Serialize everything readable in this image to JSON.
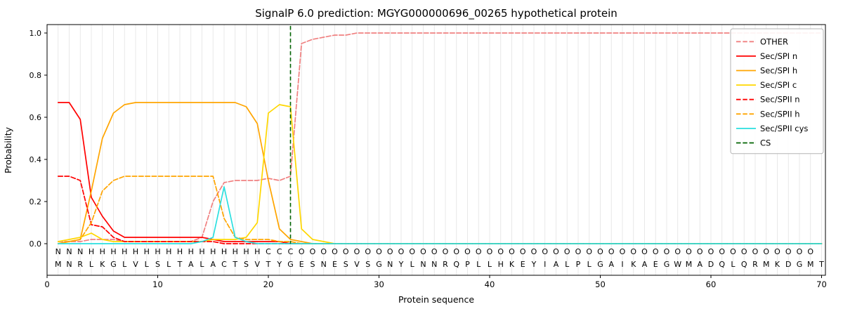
{
  "chart_data": {
    "type": "line",
    "title": "SignalP 6.0 prediction: MGYG000000696_00265 hypothetical protein",
    "xlabel": "Protein sequence",
    "ylabel": "Probability",
    "xlim": [
      0,
      70.35
    ],
    "ylim": [
      0.0,
      1.0
    ],
    "x_ticks": [
      0,
      10,
      20,
      30,
      40,
      50,
      60,
      70
    ],
    "y_ticks": [
      0.0,
      0.2,
      0.4,
      0.6,
      0.8,
      1.0
    ],
    "grid": "vertical-per-residue",
    "legend_position": "upper right",
    "cs_label": "CS",
    "cs_position": 22,
    "sequence": "MNRLKGLVLSLTALACTSVTYGESNESVSGNYLNNRQPLLHKEYIALPLGAIKAEGWMADQLQRMKDGMT",
    "annotation": "NNNHHHHHHHHHHHHHHHHCCCOOOOOOOOOOOOOOOOOOOOOOOOOOOOOOOOOOOOOOOOOOOOOOO",
    "annotation_colors": {
      "N": "#ee2222",
      "H": "#ffa500",
      "C": "#ffd700",
      "O": "#a6a6a6"
    },
    "colors": {
      "grid": "#e3e3e3",
      "frame": "#000000",
      "cs": "#006400",
      "sequence_letters": "#1a1a1a",
      "legend_border": "#b3b3b3"
    },
    "series": [
      {
        "name": "OTHER",
        "color": "#f08080",
        "dash": true,
        "values": [
          0.01,
          0.01,
          0.01,
          0.02,
          0.02,
          0.02,
          0.01,
          0.01,
          0.01,
          0.01,
          0.01,
          0.01,
          0.01,
          0.03,
          0.2,
          0.29,
          0.3,
          0.3,
          0.3,
          0.31,
          0.3,
          0.32,
          0.95,
          0.97,
          0.98,
          0.99,
          0.99,
          1.0,
          1.0,
          1.0,
          1.0,
          1.0,
          1.0,
          1.0,
          1.0,
          1.0,
          1.0,
          1.0,
          1.0,
          1.0,
          1.0,
          1.0,
          1.0,
          1.0,
          1.0,
          1.0,
          1.0,
          1.0,
          1.0,
          1.0,
          1.0,
          1.0,
          1.0,
          1.0,
          1.0,
          1.0,
          1.0,
          1.0,
          1.0,
          1.0,
          1.0,
          1.0,
          1.0,
          1.0,
          1.0,
          1.0,
          1.0,
          1.0,
          1.0,
          1.0
        ]
      },
      {
        "name": "Sec/SPI n",
        "color": "#ff0000",
        "dash": false,
        "values": [
          0.67,
          0.67,
          0.59,
          0.22,
          0.13,
          0.06,
          0.03,
          0.03,
          0.03,
          0.03,
          0.03,
          0.03,
          0.03,
          0.03,
          0.02,
          0.01,
          0.01,
          0.01,
          0.01,
          0.01,
          0.01,
          0.0,
          0.0,
          0.0,
          0.0,
          0.0,
          0.0,
          0.0,
          0.0,
          0.0,
          0.0,
          0.0,
          0.0,
          0.0,
          0.0,
          0.0,
          0.0,
          0.0,
          0.0,
          0.0,
          0.0,
          0.0,
          0.0,
          0.0,
          0.0,
          0.0,
          0.0,
          0.0,
          0.0,
          0.0,
          0.0,
          0.0,
          0.0,
          0.0,
          0.0,
          0.0,
          0.0,
          0.0,
          0.0,
          0.0,
          0.0,
          0.0,
          0.0,
          0.0,
          0.0,
          0.0,
          0.0,
          0.0,
          0.0,
          0.0
        ]
      },
      {
        "name": "Sec/SPI h",
        "color": "#ffa500",
        "dash": false,
        "values": [
          0.0,
          0.01,
          0.02,
          0.25,
          0.5,
          0.62,
          0.66,
          0.67,
          0.67,
          0.67,
          0.67,
          0.67,
          0.67,
          0.67,
          0.67,
          0.67,
          0.67,
          0.65,
          0.57,
          0.3,
          0.07,
          0.02,
          0.01,
          0.0,
          0.0,
          0.0,
          0.0,
          0.0,
          0.0,
          0.0,
          0.0,
          0.0,
          0.0,
          0.0,
          0.0,
          0.0,
          0.0,
          0.0,
          0.0,
          0.0,
          0.0,
          0.0,
          0.0,
          0.0,
          0.0,
          0.0,
          0.0,
          0.0,
          0.0,
          0.0,
          0.0,
          0.0,
          0.0,
          0.0,
          0.0,
          0.0,
          0.0,
          0.0,
          0.0,
          0.0,
          0.0,
          0.0,
          0.0,
          0.0,
          0.0,
          0.0,
          0.0,
          0.0,
          0.0,
          0.0
        ]
      },
      {
        "name": "Sec/SPI c",
        "color": "#ffd700",
        "dash": false,
        "values": [
          0.01,
          0.02,
          0.03,
          0.05,
          0.02,
          0.01,
          0.01,
          0.01,
          0.01,
          0.01,
          0.01,
          0.01,
          0.01,
          0.01,
          0.02,
          0.02,
          0.02,
          0.03,
          0.1,
          0.62,
          0.66,
          0.65,
          0.07,
          0.02,
          0.01,
          0.0,
          0.0,
          0.0,
          0.0,
          0.0,
          0.0,
          0.0,
          0.0,
          0.0,
          0.0,
          0.0,
          0.0,
          0.0,
          0.0,
          0.0,
          0.0,
          0.0,
          0.0,
          0.0,
          0.0,
          0.0,
          0.0,
          0.0,
          0.0,
          0.0,
          0.0,
          0.0,
          0.0,
          0.0,
          0.0,
          0.0,
          0.0,
          0.0,
          0.0,
          0.0,
          0.0,
          0.0,
          0.0,
          0.0,
          0.0,
          0.0,
          0.0,
          0.0,
          0.0,
          0.0
        ]
      },
      {
        "name": "Sec/SPII n",
        "color": "#ff0000",
        "dash": true,
        "values": [
          0.32,
          0.32,
          0.3,
          0.09,
          0.08,
          0.03,
          0.01,
          0.01,
          0.01,
          0.01,
          0.01,
          0.01,
          0.01,
          0.01,
          0.01,
          0.0,
          0.0,
          0.0,
          0.0,
          0.0,
          0.0,
          0.0,
          0.0,
          0.0,
          0.0,
          0.0,
          0.0,
          0.0,
          0.0,
          0.0,
          0.0,
          0.0,
          0.0,
          0.0,
          0.0,
          0.0,
          0.0,
          0.0,
          0.0,
          0.0,
          0.0,
          0.0,
          0.0,
          0.0,
          0.0,
          0.0,
          0.0,
          0.0,
          0.0,
          0.0,
          0.0,
          0.0,
          0.0,
          0.0,
          0.0,
          0.0,
          0.0,
          0.0,
          0.0,
          0.0,
          0.0,
          0.0,
          0.0,
          0.0,
          0.0,
          0.0,
          0.0,
          0.0,
          0.0,
          0.0
        ]
      },
      {
        "name": "Sec/SPII h",
        "color": "#ffa500",
        "dash": true,
        "values": [
          0.0,
          0.01,
          0.02,
          0.1,
          0.25,
          0.3,
          0.32,
          0.32,
          0.32,
          0.32,
          0.32,
          0.32,
          0.32,
          0.32,
          0.32,
          0.12,
          0.03,
          0.02,
          0.02,
          0.02,
          0.01,
          0.01,
          0.0,
          0.0,
          0.0,
          0.0,
          0.0,
          0.0,
          0.0,
          0.0,
          0.0,
          0.0,
          0.0,
          0.0,
          0.0,
          0.0,
          0.0,
          0.0,
          0.0,
          0.0,
          0.0,
          0.0,
          0.0,
          0.0,
          0.0,
          0.0,
          0.0,
          0.0,
          0.0,
          0.0,
          0.0,
          0.0,
          0.0,
          0.0,
          0.0,
          0.0,
          0.0,
          0.0,
          0.0,
          0.0,
          0.0,
          0.0,
          0.0,
          0.0,
          0.0,
          0.0,
          0.0,
          0.0,
          0.0,
          0.0
        ]
      },
      {
        "name": "Sec/SPII cys",
        "color": "#2adfdf",
        "dash": false,
        "values": [
          0.0,
          0.0,
          0.0,
          0.0,
          0.0,
          0.0,
          0.0,
          0.0,
          0.0,
          0.0,
          0.0,
          0.0,
          0.0,
          0.01,
          0.03,
          0.27,
          0.03,
          0.01,
          0.0,
          0.0,
          0.0,
          0.0,
          0.0,
          0.0,
          0.0,
          0.0,
          0.0,
          0.0,
          0.0,
          0.0,
          0.0,
          0.0,
          0.0,
          0.0,
          0.0,
          0.0,
          0.0,
          0.0,
          0.0,
          0.0,
          0.0,
          0.0,
          0.0,
          0.0,
          0.0,
          0.0,
          0.0,
          0.0,
          0.0,
          0.0,
          0.0,
          0.0,
          0.0,
          0.0,
          0.0,
          0.0,
          0.0,
          0.0,
          0.0,
          0.0,
          0.0,
          0.0,
          0.0,
          0.0,
          0.0,
          0.0,
          0.0,
          0.0,
          0.0,
          0.0
        ]
      }
    ]
  }
}
